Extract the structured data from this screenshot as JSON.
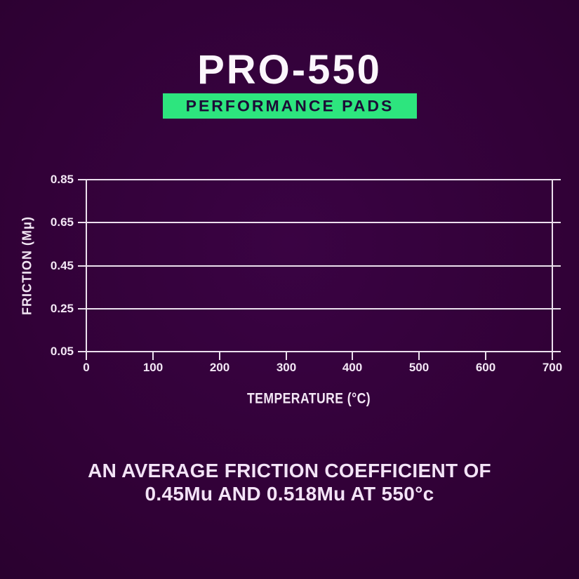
{
  "header": {
    "title": "PRO-550",
    "badge_label": "PERFORMANCE PADS"
  },
  "chart_data": {
    "type": "line",
    "title": "",
    "xlabel": "TEMPERATURE (°C)",
    "ylabel": "FRICTION (Mμ)",
    "x_ticks": [
      0,
      100,
      200,
      300,
      400,
      500,
      600,
      700
    ],
    "y_ticks": [
      0.05,
      0.25,
      0.45,
      0.65,
      0.85
    ],
    "xlim": [
      0,
      700
    ],
    "ylim": [
      0.05,
      0.85
    ],
    "grid": "horizontal gridlines at every y tick, tick marks overhang both vertical axes and bottom axis",
    "legend": "none",
    "series": [],
    "note": "axes grid is shown empty - no data curve is plotted in the screenshot"
  },
  "caption": {
    "line1": "AN AVERAGE FRICTION COEFFICIENT OF",
    "line2": "0.45Mu AND 0.518Mu AT 550°c"
  },
  "colors": {
    "background": "#320138",
    "axis_line": "#ece0ee",
    "tick_label": "#f3e7f5",
    "title_text": "#fbf6fc",
    "badge_background": "#2de57e",
    "badge_text": "#1c0c36",
    "caption_text": "#f3e3f7"
  }
}
